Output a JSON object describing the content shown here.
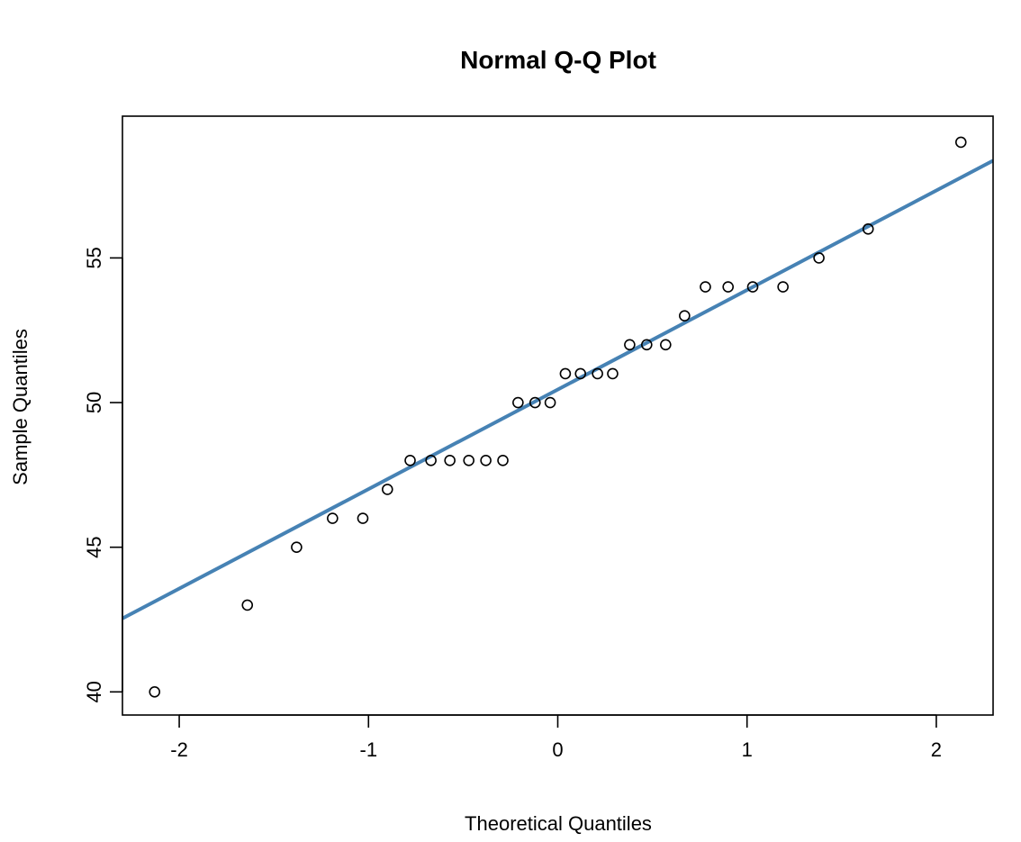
{
  "chart_data": {
    "type": "scatter",
    "title": "Normal Q-Q Plot",
    "xlabel": "Theoretical Quantiles",
    "ylabel": "Sample Quantiles",
    "xlim": [
      -2.3,
      2.3
    ],
    "ylim": [
      39.2,
      59.9
    ],
    "x_ticks": [
      -2,
      -1,
      0,
      1,
      2
    ],
    "y_ticks": [
      40,
      45,
      50,
      55
    ],
    "grid": false,
    "points": [
      {
        "x": -2.13,
        "y": 40
      },
      {
        "x": -1.64,
        "y": 43
      },
      {
        "x": -1.38,
        "y": 45
      },
      {
        "x": -1.19,
        "y": 46
      },
      {
        "x": -1.03,
        "y": 46
      },
      {
        "x": -0.9,
        "y": 47
      },
      {
        "x": -0.78,
        "y": 48
      },
      {
        "x": -0.67,
        "y": 48
      },
      {
        "x": -0.57,
        "y": 48
      },
      {
        "x": -0.47,
        "y": 48
      },
      {
        "x": -0.38,
        "y": 48
      },
      {
        "x": -0.29,
        "y": 48
      },
      {
        "x": -0.21,
        "y": 50
      },
      {
        "x": -0.12,
        "y": 50
      },
      {
        "x": -0.04,
        "y": 50
      },
      {
        "x": 0.04,
        "y": 51
      },
      {
        "x": 0.12,
        "y": 51
      },
      {
        "x": 0.21,
        "y": 51
      },
      {
        "x": 0.29,
        "y": 51
      },
      {
        "x": 0.38,
        "y": 52
      },
      {
        "x": 0.47,
        "y": 52
      },
      {
        "x": 0.57,
        "y": 52
      },
      {
        "x": 0.67,
        "y": 53
      },
      {
        "x": 0.78,
        "y": 54
      },
      {
        "x": 0.9,
        "y": 54
      },
      {
        "x": 1.03,
        "y": 54
      },
      {
        "x": 1.19,
        "y": 54
      },
      {
        "x": 1.38,
        "y": 55
      },
      {
        "x": 1.64,
        "y": 56
      },
      {
        "x": 2.13,
        "y": 59
      }
    ],
    "reference_line": {
      "intercept": 50.45,
      "slope": 3.44,
      "color": "#4682b4"
    },
    "point_color": "#000000",
    "frame_color": "#000000"
  }
}
